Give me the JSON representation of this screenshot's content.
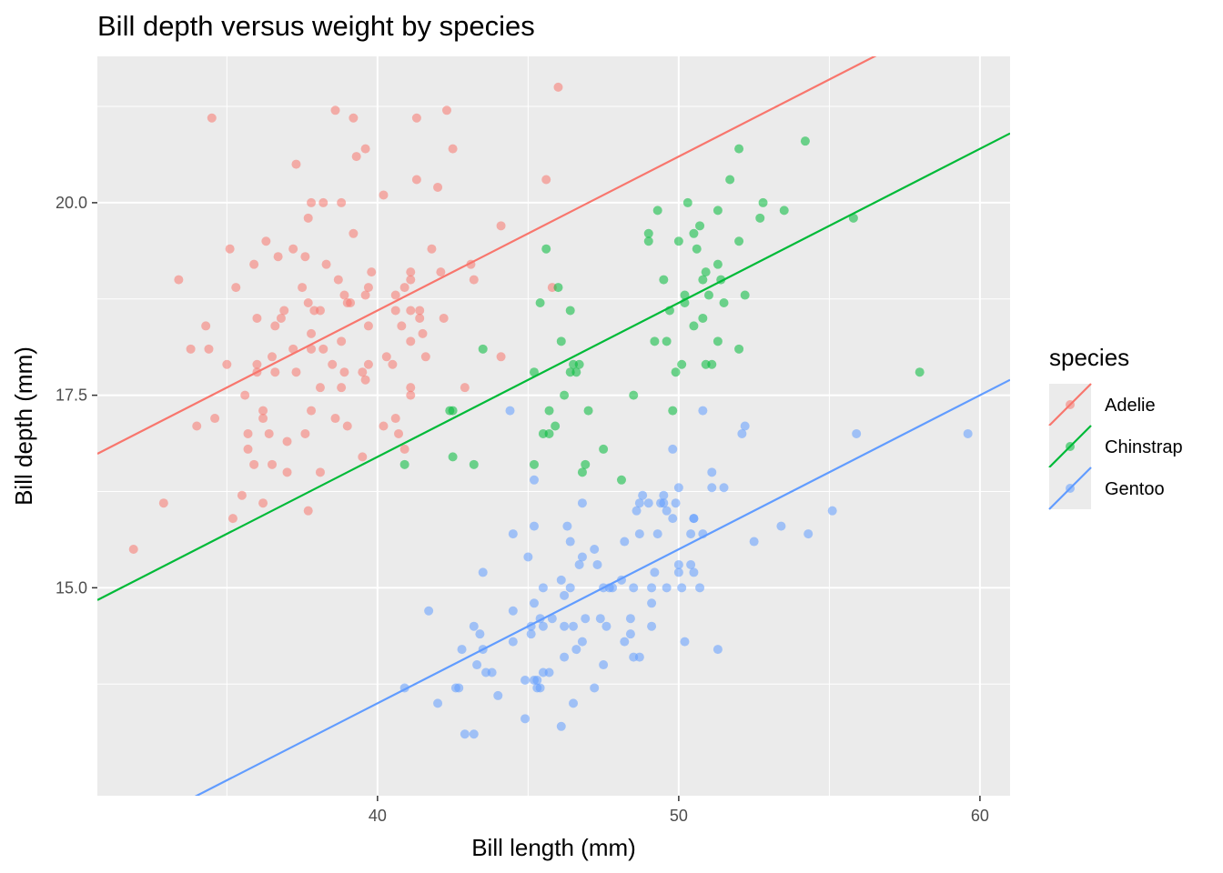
{
  "chart_data": {
    "type": "scatter",
    "title": "Bill depth versus weight by species",
    "xlabel": "Bill length (mm)",
    "ylabel": "Bill depth (mm)",
    "xlim": [
      30.7,
      61.0
    ],
    "ylim": [
      12.3,
      21.9
    ],
    "x_ticks": [
      40,
      50,
      60
    ],
    "x_tick_labels": [
      "40",
      "50",
      "60"
    ],
    "y_ticks": [
      15.0,
      17.5,
      20.0
    ],
    "y_tick_labels": [
      "15.0",
      "17.5",
      "20.0"
    ],
    "grid": true,
    "legend": {
      "title": "species",
      "position": "right"
    },
    "series": [
      {
        "name": "Adelie",
        "color": "#F8766D",
        "fit_line": {
          "slope": 0.2,
          "intercept": 10.6
        },
        "points": [
          [
            31.9,
            15.5
          ],
          [
            32.9,
            16.1
          ],
          [
            33.4,
            19.0
          ],
          [
            33.8,
            18.1
          ],
          [
            34.0,
            17.1
          ],
          [
            34.3,
            18.4
          ],
          [
            34.4,
            18.1
          ],
          [
            34.5,
            21.1
          ],
          [
            34.6,
            17.2
          ],
          [
            35.0,
            17.9
          ],
          [
            35.1,
            19.4
          ],
          [
            35.2,
            15.9
          ],
          [
            35.3,
            18.9
          ],
          [
            35.5,
            16.2
          ],
          [
            35.6,
            17.5
          ],
          [
            35.7,
            17.0
          ],
          [
            35.7,
            16.8
          ],
          [
            35.9,
            16.6
          ],
          [
            35.9,
            19.2
          ],
          [
            36.0,
            18.5
          ],
          [
            36.0,
            17.9
          ],
          [
            36.0,
            17.8
          ],
          [
            36.2,
            16.1
          ],
          [
            36.2,
            17.3
          ],
          [
            36.2,
            17.2
          ],
          [
            36.3,
            19.5
          ],
          [
            36.4,
            17.0
          ],
          [
            36.5,
            16.6
          ],
          [
            36.5,
            18.0
          ],
          [
            36.6,
            17.8
          ],
          [
            36.6,
            18.4
          ],
          [
            36.7,
            19.3
          ],
          [
            36.8,
            18.5
          ],
          [
            36.9,
            18.6
          ],
          [
            37.0,
            16.5
          ],
          [
            37.0,
            16.9
          ],
          [
            37.2,
            19.4
          ],
          [
            37.2,
            18.1
          ],
          [
            37.3,
            20.5
          ],
          [
            37.3,
            17.8
          ],
          [
            37.5,
            18.9
          ],
          [
            37.6,
            19.3
          ],
          [
            37.6,
            17.0
          ],
          [
            37.7,
            18.7
          ],
          [
            37.7,
            19.8
          ],
          [
            37.7,
            16.0
          ],
          [
            37.8,
            20.0
          ],
          [
            37.8,
            17.3
          ],
          [
            37.8,
            18.3
          ],
          [
            37.8,
            18.1
          ],
          [
            37.9,
            18.6
          ],
          [
            38.1,
            17.6
          ],
          [
            38.1,
            16.5
          ],
          [
            38.1,
            18.6
          ],
          [
            38.2,
            18.1
          ],
          [
            38.2,
            20.0
          ],
          [
            38.3,
            19.2
          ],
          [
            38.5,
            17.9
          ],
          [
            38.6,
            21.2
          ],
          [
            38.6,
            17.2
          ],
          [
            38.7,
            19.0
          ],
          [
            38.8,
            17.6
          ],
          [
            38.8,
            18.2
          ],
          [
            38.8,
            20.0
          ],
          [
            38.9,
            17.8
          ],
          [
            38.9,
            18.8
          ],
          [
            39.0,
            17.1
          ],
          [
            39.0,
            18.7
          ],
          [
            39.1,
            18.7
          ],
          [
            39.2,
            19.6
          ],
          [
            39.2,
            21.1
          ],
          [
            39.3,
            20.6
          ],
          [
            39.5,
            16.7
          ],
          [
            39.5,
            17.8
          ],
          [
            39.6,
            20.7
          ],
          [
            39.6,
            17.7
          ],
          [
            39.6,
            18.8
          ],
          [
            39.7,
            17.9
          ],
          [
            39.7,
            18.4
          ],
          [
            39.7,
            18.9
          ],
          [
            39.8,
            19.1
          ],
          [
            40.2,
            20.1
          ],
          [
            40.2,
            17.1
          ],
          [
            40.3,
            18.0
          ],
          [
            40.5,
            17.9
          ],
          [
            40.6,
            18.8
          ],
          [
            40.6,
            18.6
          ],
          [
            40.6,
            17.2
          ],
          [
            40.7,
            17.0
          ],
          [
            40.8,
            18.4
          ],
          [
            40.9,
            18.9
          ],
          [
            40.9,
            16.8
          ],
          [
            41.1,
            19.1
          ],
          [
            41.1,
            17.5
          ],
          [
            41.1,
            18.2
          ],
          [
            41.1,
            17.6
          ],
          [
            41.1,
            18.6
          ],
          [
            41.1,
            19.0
          ],
          [
            41.3,
            21.1
          ],
          [
            41.3,
            20.3
          ],
          [
            41.4,
            18.6
          ],
          [
            41.4,
            18.5
          ],
          [
            41.5,
            18.3
          ],
          [
            41.6,
            18.0
          ],
          [
            41.8,
            19.4
          ],
          [
            42.0,
            20.2
          ],
          [
            42.1,
            19.1
          ],
          [
            42.2,
            18.5
          ],
          [
            42.3,
            21.2
          ],
          [
            42.5,
            20.7
          ],
          [
            42.9,
            17.6
          ],
          [
            43.1,
            19.2
          ],
          [
            43.2,
            19.0
          ],
          [
            44.1,
            19.7
          ],
          [
            44.1,
            18.0
          ],
          [
            45.6,
            20.3
          ],
          [
            46.0,
            21.5
          ],
          [
            45.8,
            18.9
          ]
        ]
      },
      {
        "name": "Chinstrap",
        "color": "#00BA38",
        "fit_line": {
          "slope": 0.2,
          "intercept": 8.7
        },
        "points": [
          [
            40.9,
            16.6
          ],
          [
            42.4,
            17.3
          ],
          [
            42.5,
            17.3
          ],
          [
            42.5,
            16.7
          ],
          [
            43.2,
            16.6
          ],
          [
            43.5,
            18.1
          ],
          [
            45.2,
            17.8
          ],
          [
            45.2,
            16.6
          ],
          [
            45.4,
            18.7
          ],
          [
            45.5,
            17.0
          ],
          [
            45.6,
            19.4
          ],
          [
            45.7,
            17.3
          ],
          [
            45.7,
            17.0
          ],
          [
            45.9,
            17.1
          ],
          [
            46.0,
            18.9
          ],
          [
            46.1,
            18.2
          ],
          [
            46.2,
            17.5
          ],
          [
            46.4,
            18.6
          ],
          [
            46.4,
            17.8
          ],
          [
            46.5,
            17.9
          ],
          [
            46.6,
            17.8
          ],
          [
            46.7,
            17.9
          ],
          [
            46.8,
            16.5
          ],
          [
            46.9,
            16.6
          ],
          [
            47.0,
            17.3
          ],
          [
            47.5,
            16.8
          ],
          [
            48.1,
            16.4
          ],
          [
            48.5,
            17.5
          ],
          [
            49.0,
            19.5
          ],
          [
            49.0,
            19.6
          ],
          [
            49.2,
            18.2
          ],
          [
            49.3,
            19.9
          ],
          [
            49.5,
            19.0
          ],
          [
            49.6,
            18.2
          ],
          [
            49.7,
            18.6
          ],
          [
            49.8,
            17.3
          ],
          [
            50.0,
            19.5
          ],
          [
            50.2,
            18.7
          ],
          [
            50.3,
            20.0
          ],
          [
            50.5,
            19.6
          ],
          [
            50.5,
            18.4
          ],
          [
            50.6,
            19.4
          ],
          [
            50.7,
            19.7
          ],
          [
            50.8,
            18.5
          ],
          [
            50.8,
            19.0
          ],
          [
            50.9,
            17.9
          ],
          [
            50.9,
            19.1
          ],
          [
            51.0,
            18.8
          ],
          [
            51.3,
            18.2
          ],
          [
            51.3,
            19.2
          ],
          [
            51.3,
            19.9
          ],
          [
            51.4,
            19.0
          ],
          [
            51.5,
            18.7
          ],
          [
            51.7,
            20.3
          ],
          [
            52.0,
            18.1
          ],
          [
            52.0,
            19.5
          ],
          [
            52.0,
            20.7
          ],
          [
            52.2,
            18.8
          ],
          [
            52.7,
            19.8
          ],
          [
            52.8,
            20.0
          ],
          [
            53.5,
            19.9
          ],
          [
            54.2,
            20.8
          ],
          [
            55.8,
            19.8
          ],
          [
            58.0,
            17.8
          ],
          [
            49.9,
            17.8
          ],
          [
            50.1,
            17.9
          ],
          [
            50.2,
            18.8
          ],
          [
            51.1,
            17.9
          ]
        ]
      },
      {
        "name": "Gentoo",
        "color": "#619CFF",
        "fit_line": {
          "slope": 0.2,
          "intercept": 5.5
        },
        "points": [
          [
            40.9,
            13.7
          ],
          [
            41.7,
            14.7
          ],
          [
            42.0,
            13.5
          ],
          [
            42.6,
            13.7
          ],
          [
            42.7,
            13.7
          ],
          [
            42.8,
            14.2
          ],
          [
            42.9,
            13.1
          ],
          [
            43.2,
            14.5
          ],
          [
            43.2,
            13.1
          ],
          [
            43.3,
            14.0
          ],
          [
            43.4,
            14.4
          ],
          [
            43.5,
            14.2
          ],
          [
            43.5,
            15.2
          ],
          [
            43.6,
            13.9
          ],
          [
            43.8,
            13.9
          ],
          [
            44.0,
            13.6
          ],
          [
            44.4,
            17.3
          ],
          [
            44.5,
            14.3
          ],
          [
            44.5,
            15.7
          ],
          [
            44.5,
            14.7
          ],
          [
            44.9,
            13.8
          ],
          [
            44.9,
            13.3
          ],
          [
            45.0,
            15.4
          ],
          [
            45.1,
            14.5
          ],
          [
            45.1,
            14.4
          ],
          [
            45.2,
            14.8
          ],
          [
            45.2,
            16.4
          ],
          [
            45.2,
            15.8
          ],
          [
            45.2,
            13.8
          ],
          [
            45.3,
            13.8
          ],
          [
            45.3,
            13.7
          ],
          [
            45.4,
            14.6
          ],
          [
            45.4,
            13.7
          ],
          [
            45.5,
            15.0
          ],
          [
            45.5,
            14.5
          ],
          [
            45.5,
            13.9
          ],
          [
            45.7,
            13.9
          ],
          [
            45.8,
            14.6
          ],
          [
            46.1,
            13.2
          ],
          [
            46.1,
            15.1
          ],
          [
            46.2,
            14.5
          ],
          [
            46.2,
            14.1
          ],
          [
            46.2,
            14.9
          ],
          [
            46.3,
            15.8
          ],
          [
            46.4,
            15.0
          ],
          [
            46.4,
            15.6
          ],
          [
            46.5,
            14.5
          ],
          [
            46.5,
            13.5
          ],
          [
            46.6,
            14.2
          ],
          [
            46.7,
            15.3
          ],
          [
            46.8,
            14.3
          ],
          [
            46.8,
            15.4
          ],
          [
            46.8,
            16.1
          ],
          [
            46.9,
            14.6
          ],
          [
            47.2,
            13.7
          ],
          [
            47.2,
            15.5
          ],
          [
            47.3,
            15.3
          ],
          [
            47.4,
            14.6
          ],
          [
            47.5,
            14.0
          ],
          [
            47.5,
            15.0
          ],
          [
            47.6,
            14.5
          ],
          [
            47.7,
            15.0
          ],
          [
            47.8,
            15.0
          ],
          [
            48.1,
            15.1
          ],
          [
            48.2,
            14.3
          ],
          [
            48.2,
            15.6
          ],
          [
            48.4,
            14.4
          ],
          [
            48.4,
            14.6
          ],
          [
            48.5,
            14.1
          ],
          [
            48.5,
            15.0
          ],
          [
            48.6,
            16.0
          ],
          [
            48.7,
            14.1
          ],
          [
            48.7,
            15.7
          ],
          [
            48.7,
            16.1
          ],
          [
            48.8,
            16.2
          ],
          [
            49.0,
            16.1
          ],
          [
            49.1,
            14.5
          ],
          [
            49.1,
            14.8
          ],
          [
            49.1,
            15.0
          ],
          [
            49.2,
            15.2
          ],
          [
            49.3,
            15.7
          ],
          [
            49.4,
            16.1
          ],
          [
            49.5,
            16.2
          ],
          [
            49.5,
            16.1
          ],
          [
            49.6,
            15.0
          ],
          [
            49.6,
            16.0
          ],
          [
            49.8,
            15.9
          ],
          [
            49.8,
            16.8
          ],
          [
            49.9,
            16.1
          ],
          [
            50.0,
            16.3
          ],
          [
            50.0,
            15.2
          ],
          [
            50.0,
            15.3
          ],
          [
            50.1,
            15.0
          ],
          [
            50.2,
            14.3
          ],
          [
            50.4,
            15.3
          ],
          [
            50.4,
            15.7
          ],
          [
            50.5,
            15.2
          ],
          [
            50.5,
            15.9
          ],
          [
            50.5,
            15.9
          ],
          [
            50.7,
            15.0
          ],
          [
            50.8,
            15.7
          ],
          [
            50.8,
            17.3
          ],
          [
            51.1,
            16.3
          ],
          [
            51.1,
            16.5
          ],
          [
            51.3,
            14.2
          ],
          [
            51.5,
            16.3
          ],
          [
            52.1,
            17.0
          ],
          [
            52.2,
            17.1
          ],
          [
            52.5,
            15.6
          ],
          [
            53.4,
            15.8
          ],
          [
            54.3,
            15.7
          ],
          [
            55.1,
            16.0
          ],
          [
            55.9,
            17.0
          ],
          [
            59.6,
            17.0
          ]
        ]
      }
    ]
  }
}
